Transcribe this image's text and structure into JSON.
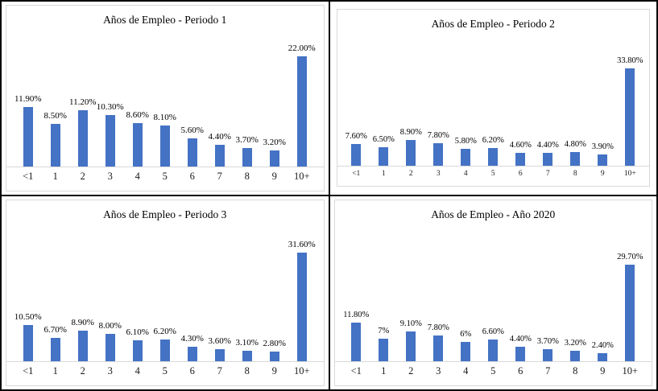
{
  "colors": {
    "bar": "#4472C4",
    "axis_line": "#d9d9d9",
    "chart_border": "#d9d9d9",
    "grid_lines": "#000000",
    "label_text": "#000000"
  },
  "chart_data": [
    {
      "type": "bar",
      "title": "Años de Empleo - Periodo 1",
      "xlabel": "",
      "ylabel": "",
      "categories": [
        "<1",
        "1",
        "2",
        "3",
        "4",
        "5",
        "6",
        "7",
        "8",
        "9",
        "10+"
      ],
      "values": [
        11.9,
        8.5,
        11.2,
        10.3,
        8.6,
        8.1,
        5.6,
        4.4,
        3.7,
        3.2,
        22.0
      ],
      "labels": [
        "11.90%",
        "8.50%",
        "11.20%",
        "10.30%",
        "8.60%",
        "8.10%",
        "5.60%",
        "4.40%",
        "3.70%",
        "3.20%",
        "22.00%"
      ],
      "ylim": [
        0,
        24
      ],
      "grid": false,
      "legend": false
    },
    {
      "type": "bar",
      "title": "Años de Empleo - Periodo 2",
      "xlabel": "",
      "ylabel": "",
      "categories": [
        "<1",
        "1",
        "2",
        "3",
        "4",
        "5",
        "6",
        "7",
        "8",
        "9",
        "10+"
      ],
      "values": [
        7.6,
        6.5,
        8.9,
        7.8,
        5.8,
        6.2,
        4.6,
        4.4,
        4.8,
        3.9,
        33.8
      ],
      "labels": [
        "7.60%",
        "6.50%",
        "8.90%",
        "7.80%",
        "5.80%",
        "6.20%",
        "4.60%",
        "4.40%",
        "4.80%",
        "3.90%",
        "33.80%"
      ],
      "ylim": [
        0,
        42
      ],
      "grid": false,
      "legend": false
    },
    {
      "type": "bar",
      "title": "Años de Empleo - Periodo 3",
      "xlabel": "",
      "ylabel": "",
      "categories": [
        "<1",
        "1",
        "2",
        "3",
        "4",
        "5",
        "6",
        "7",
        "8",
        "9",
        "10+"
      ],
      "values": [
        10.5,
        6.7,
        8.9,
        8.0,
        6.1,
        6.2,
        4.3,
        3.6,
        3.1,
        2.8,
        31.6
      ],
      "labels": [
        "10.50%",
        "6.70%",
        "8.90%",
        "8.00%",
        "6.10%",
        "6.20%",
        "4.30%",
        "3.60%",
        "3.10%",
        "2.80%",
        "31.60%"
      ],
      "ylim": [
        0,
        35
      ],
      "grid": false,
      "legend": false
    },
    {
      "type": "bar",
      "title": "Años de Empleo - Año 2020",
      "xlabel": "",
      "ylabel": "",
      "categories": [
        "<1",
        "1",
        "2",
        "3",
        "4",
        "5",
        "6",
        "7",
        "8",
        "9",
        "10+"
      ],
      "values": [
        11.8,
        7.0,
        9.1,
        7.8,
        6.0,
        6.6,
        4.4,
        3.7,
        3.2,
        2.4,
        29.7
      ],
      "labels": [
        "11.80%",
        "7%",
        "9.10%",
        "7.80%",
        "6%",
        "6.60%",
        "4.40%",
        "3.70%",
        "3.20%",
        "2.40%",
        "29.70%"
      ],
      "ylim": [
        0,
        37
      ],
      "grid": false,
      "legend": false
    }
  ]
}
